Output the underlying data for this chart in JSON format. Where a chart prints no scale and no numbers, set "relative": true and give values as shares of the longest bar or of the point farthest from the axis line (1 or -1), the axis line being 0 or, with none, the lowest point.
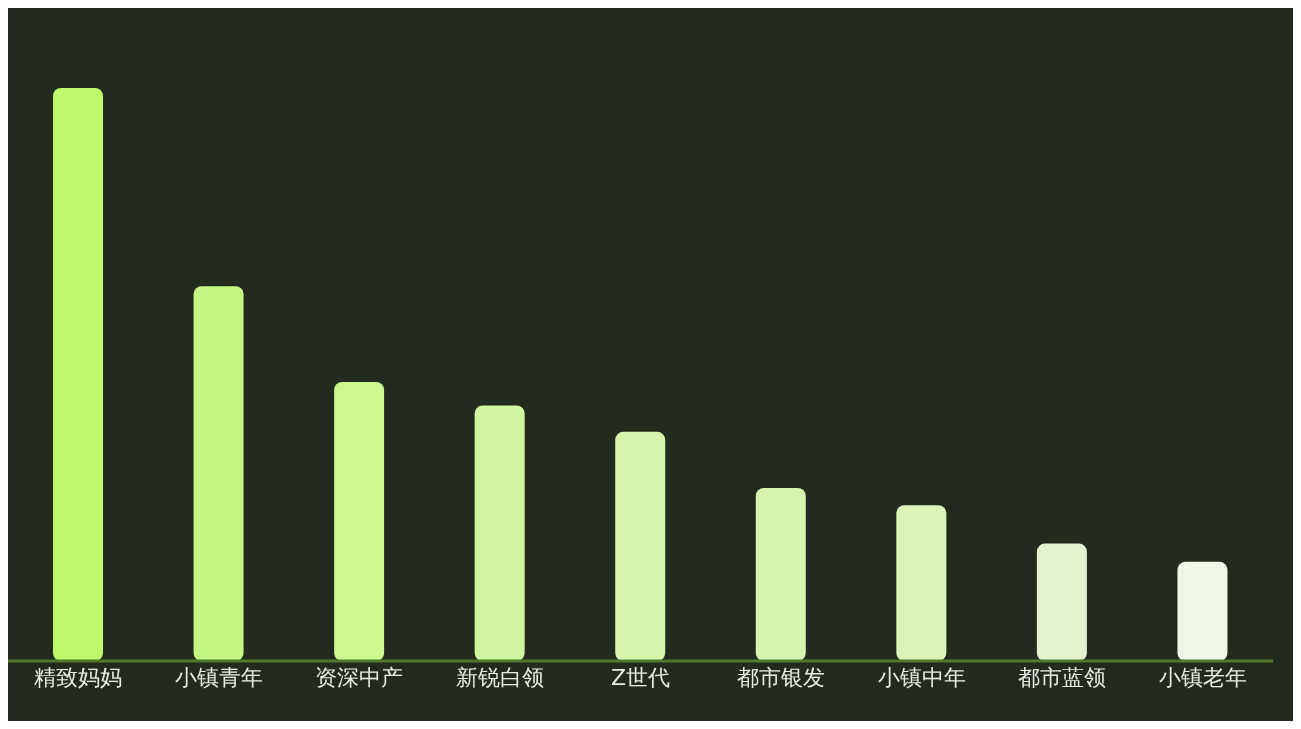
{
  "chart_data": {
    "type": "bar",
    "relative": true,
    "categories": [
      "精致妈妈",
      "小镇青年",
      "资深中产",
      "新锐白领",
      "Z世代",
      "都市银发",
      "小镇中年",
      "都市蓝领",
      "小镇老年"
    ],
    "values": [
      1,
      0.654,
      0.487,
      0.446,
      0.4,
      0.302,
      0.272,
      0.205,
      0.173
    ],
    "colors": [
      "#bffa6c",
      "#c5f883",
      "#cbf890",
      "#d0f7a0",
      "#d5f5ab",
      "#d7f3b0",
      "#dbf3b8",
      "#e5f2cf",
      "#f0f6e6"
    ]
  }
}
